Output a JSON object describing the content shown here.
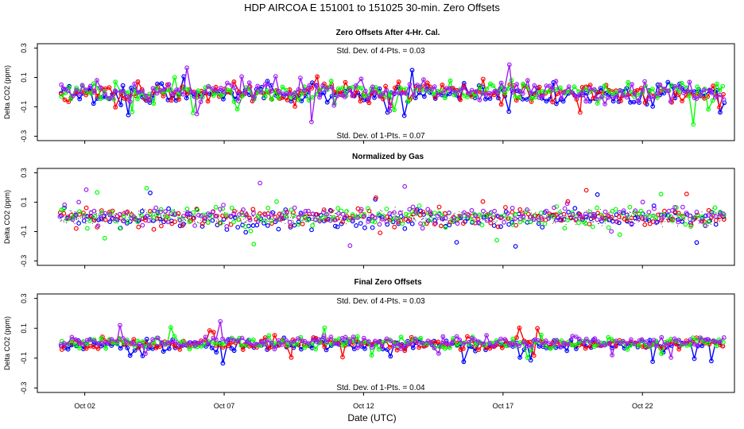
{
  "chart_data": {
    "type": "scatter",
    "title": "HDP    AIRCOA E    151001 to 151025   30-min. Zero Offsets",
    "xlabel": "Date (UTC)",
    "x_range_days": [
      0.3,
      25.3
    ],
    "x_ticks": [
      {
        "day": 2,
        "label": "Oct 02"
      },
      {
        "day": 7,
        "label": "Oct 07"
      },
      {
        "day": 12,
        "label": "Oct 12"
      },
      {
        "day": 17,
        "label": "Oct 17"
      },
      {
        "day": 22,
        "label": "Oct 22"
      }
    ],
    "series_colors": {
      "gas_1": "#0000ff",
      "gas_2": "#ff0000",
      "gas_3": "#00ff00",
      "gas_4": "#a020f0",
      "points": "#000000"
    },
    "panels": [
      {
        "title": "Zero Offsets After 4-Hr. Cal.",
        "ylabel": "Delta CO2 (ppm)",
        "ylim": [
          -0.33,
          0.33
        ],
        "yticks": [
          -0.3,
          -0.1,
          0.1,
          0.3
        ],
        "ytick_labels": [
          "-0.3",
          "-0.1",
          "0.1",
          "0.3"
        ],
        "annotation_top": "Std. Dev. of 4-Pts. =  0.03",
        "annotation_bottom": "Std. Dev. of 1-Pts. =  0.07",
        "spread": 0.07,
        "style": "lines+symbols"
      },
      {
        "title": "Normalized by Gas",
        "ylabel": "Delta CO2 (ppm)",
        "ylim": [
          -0.33,
          0.33
        ],
        "yticks": [
          -0.3,
          -0.1,
          0.1,
          0.3
        ],
        "ytick_labels": [
          "-0.3",
          "-0.1",
          "0.1",
          "0.3"
        ],
        "annotation_top": "",
        "annotation_bottom": "",
        "spread": 0.07,
        "style": "symbols+black-dots"
      },
      {
        "title": "Final Zero Offsets",
        "ylabel": "Delta CO2 (ppm)",
        "ylim": [
          -0.33,
          0.33
        ],
        "yticks": [
          -0.3,
          -0.1,
          0.1,
          0.3
        ],
        "ytick_labels": [
          "-0.3",
          "-0.1",
          "0.1",
          "0.3"
        ],
        "annotation_top": "Std. Dev. of 4-Pts. =  0.03",
        "annotation_bottom": "Std. Dev. of 1-Pts. =  0.04",
        "spread": 0.04,
        "style": "lines+symbols"
      }
    ]
  }
}
